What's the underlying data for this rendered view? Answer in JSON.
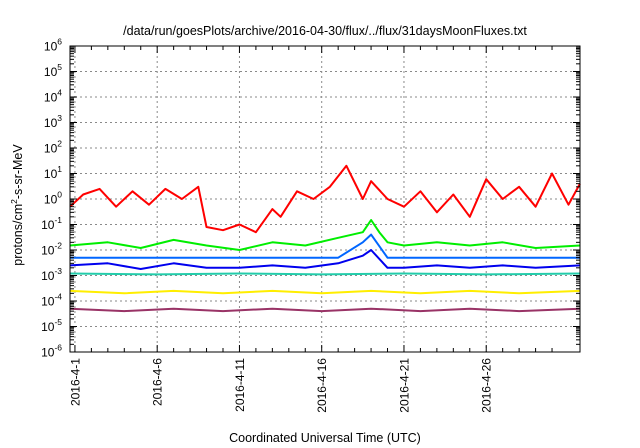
{
  "chart_data": {
    "type": "line",
    "title": "/data/run/goesPlots/archive/2016-04-30/flux/../flux/31daysMoonFluxes.txt",
    "xlabel": "Coordinated Universal Time (UTC)",
    "ylabel": "protons/cm2-s-sr-MeV",
    "ylabel_parts": [
      "protons/cm",
      "2",
      "-s-sr-MeV"
    ],
    "yscale": "log",
    "ylim_exp": [
      -6,
      6
    ],
    "yticks": [
      {
        "base": "10",
        "exp": "6"
      },
      {
        "base": "10",
        "exp": "5"
      },
      {
        "base": "10",
        "exp": "4"
      },
      {
        "base": "10",
        "exp": "3"
      },
      {
        "base": "10",
        "exp": "2"
      },
      {
        "base": "10",
        "exp": "1"
      },
      {
        "base": "10",
        "exp": "0"
      },
      {
        "base": "10",
        "exp": "-1"
      },
      {
        "base": "10",
        "exp": "-2"
      },
      {
        "base": "10",
        "exp": "-3"
      },
      {
        "base": "10",
        "exp": "-4"
      },
      {
        "base": "10",
        "exp": "-5"
      },
      {
        "base": "10",
        "exp": "-6"
      }
    ],
    "xlim_day": [
      -0.3,
      30.7
    ],
    "xtick_day": [
      0,
      5,
      10,
      15,
      20,
      25
    ],
    "xticks": [
      "2016-4-1",
      "2016-4-6",
      "2016-4-11",
      "2016-4-16",
      "2016-4-21",
      "2016-4-26"
    ],
    "grid": true,
    "series": [
      {
        "color": "#ff0000",
        "day": [
          -0.3,
          0.5,
          1.5,
          2.5,
          3.5,
          4.5,
          5.5,
          6.5,
          7.5,
          8.0,
          9.0,
          10.0,
          11.0,
          12.0,
          12.5,
          13.5,
          14.5,
          15.5,
          16.5,
          17.5,
          18.0,
          19.0,
          20.0,
          21.0,
          22.0,
          23.0,
          24.0,
          25.0,
          26.0,
          27.0,
          28.0,
          29.0,
          30.0,
          30.7
        ],
        "value": [
          0.5,
          1.5,
          2.5,
          0.5,
          2.0,
          0.6,
          2.5,
          1.0,
          3.0,
          0.08,
          0.06,
          0.1,
          0.05,
          0.4,
          0.2,
          2.0,
          1.0,
          3.0,
          20,
          1.0,
          5.0,
          1.0,
          0.5,
          2.0,
          0.3,
          1.5,
          0.2,
          6.0,
          1.0,
          3.0,
          0.5,
          10,
          0.6,
          4.0
        ]
      },
      {
        "color": "#00ee00",
        "day": [
          -0.3,
          2.0,
          4.0,
          6.0,
          8.0,
          10.0,
          12.0,
          14.0,
          16.0,
          17.5,
          18.0,
          18.5,
          19.0,
          20.0,
          22.0,
          24.0,
          26.0,
          28.0,
          30.7
        ],
        "value": [
          0.015,
          0.02,
          0.012,
          0.025,
          0.015,
          0.01,
          0.02,
          0.015,
          0.03,
          0.05,
          0.15,
          0.05,
          0.02,
          0.015,
          0.02,
          0.015,
          0.02,
          0.012,
          0.015
        ]
      },
      {
        "color": "#0000ee",
        "day": [
          -0.3,
          2.0,
          4.0,
          6.0,
          8.0,
          10.0,
          12.0,
          14.0,
          16.0,
          17.5,
          18.0,
          19.0,
          20.0,
          22.0,
          24.0,
          26.0,
          28.0,
          30.7
        ],
        "value": [
          0.0025,
          0.003,
          0.0018,
          0.003,
          0.002,
          0.002,
          0.0025,
          0.002,
          0.003,
          0.006,
          0.01,
          0.002,
          0.002,
          0.0025,
          0.002,
          0.0025,
          0.002,
          0.0025
        ]
      },
      {
        "color": "#0066ff",
        "day": [
          -0.3,
          4.0,
          8.0,
          12.0,
          16.0,
          17.5,
          18.0,
          19.0,
          22.0,
          26.0,
          30.7
        ],
        "value": [
          0.005,
          0.005,
          0.005,
          0.005,
          0.005,
          0.02,
          0.04,
          0.005,
          0.005,
          0.005,
          0.005
        ]
      },
      {
        "color": "#22ccaa",
        "day": [
          -0.3,
          5.0,
          10.0,
          15.0,
          20.0,
          25.0,
          30.7
        ],
        "value": [
          0.0012,
          0.0011,
          0.0012,
          0.0011,
          0.0012,
          0.0011,
          0.0012
        ]
      },
      {
        "color": "#ffee00",
        "day": [
          -0.3,
          3.0,
          6.0,
          9.0,
          12.0,
          15.0,
          18.0,
          21.0,
          24.0,
          27.0,
          30.7
        ],
        "value": [
          0.00025,
          0.0002,
          0.00025,
          0.0002,
          0.00025,
          0.0002,
          0.00025,
          0.0002,
          0.00025,
          0.0002,
          0.00025
        ]
      },
      {
        "color": "#993366",
        "day": [
          -0.3,
          3.0,
          6.0,
          9.0,
          12.0,
          15.0,
          18.0,
          21.0,
          24.0,
          27.0,
          30.7
        ],
        "value": [
          5e-05,
          4e-05,
          5e-05,
          4e-05,
          5e-05,
          4e-05,
          5e-05,
          4e-05,
          5e-05,
          4e-05,
          5e-05
        ]
      }
    ]
  }
}
